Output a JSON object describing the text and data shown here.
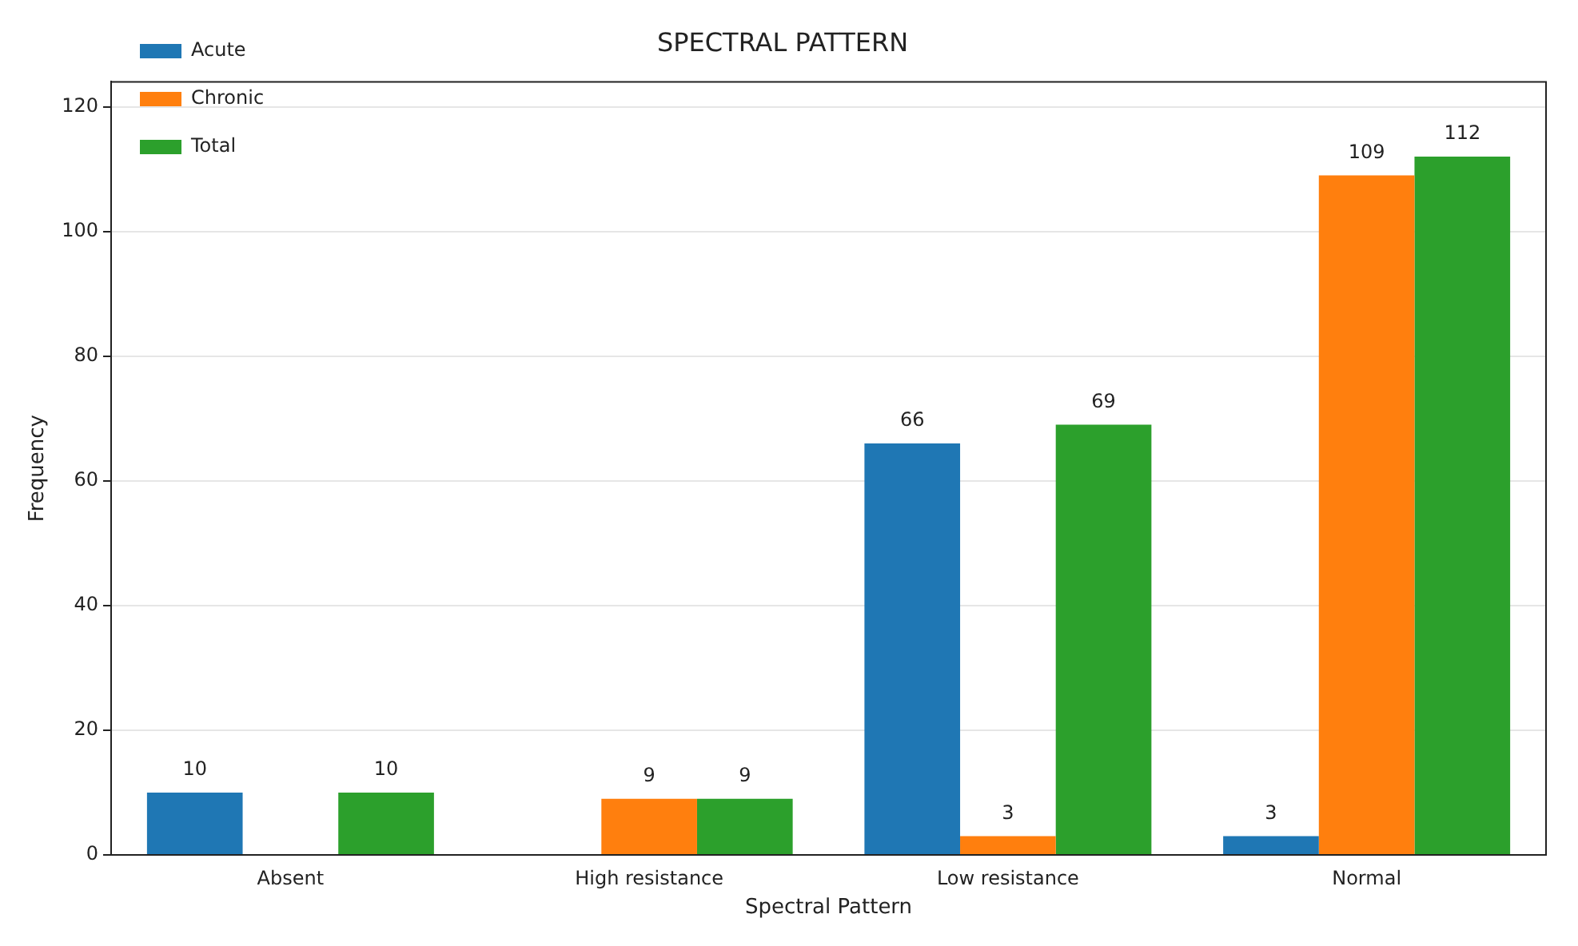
{
  "chart_data": {
    "type": "bar",
    "title": "SPECTRAL PATTERN",
    "xlabel": "Spectral Pattern",
    "ylabel": "Frequency",
    "categories": [
      "Absent",
      "High resistance",
      "Low resistance",
      "Normal"
    ],
    "series": [
      {
        "name": "Acute",
        "color": "#1f77b4",
        "values": [
          10,
          0,
          66,
          3
        ],
        "value_labels": [
          "10",
          null,
          "66",
          "3"
        ]
      },
      {
        "name": "Chronic",
        "color": "#ff7f0e",
        "values": [
          0,
          9,
          3,
          109
        ],
        "value_labels": [
          null,
          "9",
          "3",
          "109"
        ]
      },
      {
        "name": "Total",
        "color": "#2ca02c",
        "values": [
          10,
          9,
          69,
          112
        ],
        "value_labels": [
          "10",
          "9",
          "69",
          "112"
        ]
      }
    ],
    "ylim": [
      0,
      124
    ],
    "yticks": [
      0,
      20,
      40,
      60,
      80,
      100,
      120
    ],
    "grid": "y",
    "legend": "top left"
  }
}
